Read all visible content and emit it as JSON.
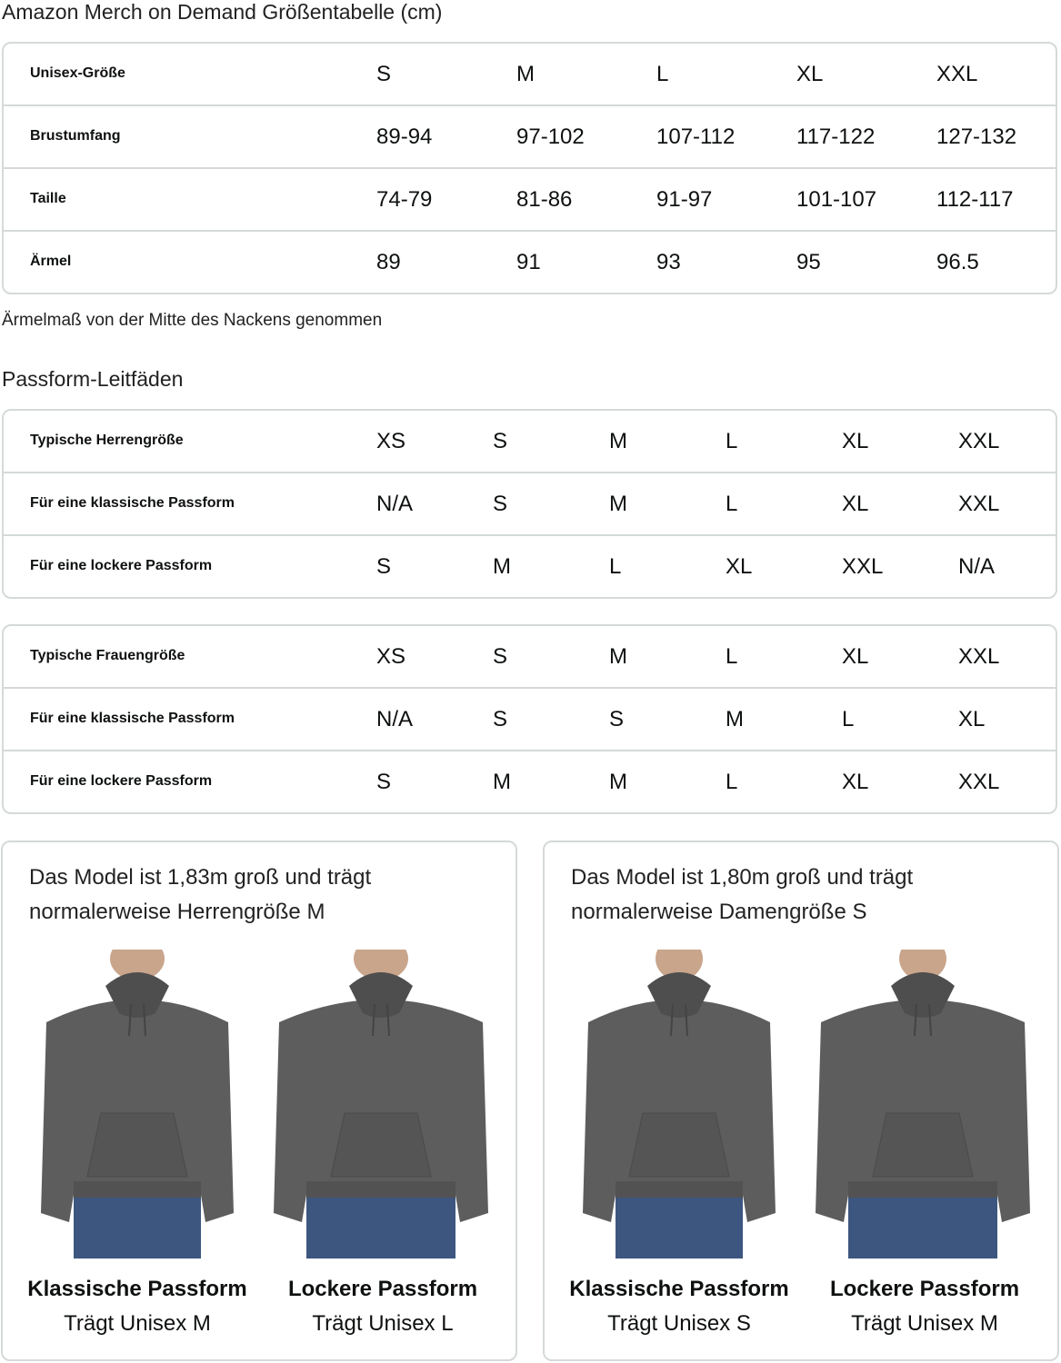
{
  "title": "Amazon Merch on Demand Größentabelle (cm)",
  "unisex_table": {
    "rows": [
      {
        "label": "Unisex-Größe",
        "values": [
          "S",
          "M",
          "L",
          "XL",
          "XXL"
        ]
      },
      {
        "label": "Brustumfang",
        "values": [
          "89-94",
          "97-102",
          "107-112",
          "117-122",
          "127-132"
        ]
      },
      {
        "label": "Taille",
        "values": [
          "74-79",
          "81-86",
          "91-97",
          "101-107",
          "112-117"
        ]
      },
      {
        "label": "Ärmel",
        "values": [
          "89",
          "91",
          "93",
          "95",
          "96.5"
        ]
      }
    ]
  },
  "note": "Ärmelmaß von der Mitte des Nackens genommen",
  "fit_guides_title": "Passform-Leitfäden",
  "men_table": {
    "rows": [
      {
        "label": "Typische Herrengröße",
        "values": [
          "XS",
          "S",
          "M",
          "L",
          "XL",
          "XXL"
        ]
      },
      {
        "label": "Für eine klassische Passform",
        "values": [
          "N/A",
          "S",
          "M",
          "L",
          "XL",
          "XXL"
        ]
      },
      {
        "label": "Für eine lockere Passform",
        "values": [
          "S",
          "M",
          "L",
          "XL",
          "XXL",
          "N/A"
        ]
      }
    ]
  },
  "women_table": {
    "rows": [
      {
        "label": "Typische Frauengröße",
        "values": [
          "XS",
          "S",
          "M",
          "L",
          "XL",
          "XXL"
        ]
      },
      {
        "label": "Für eine klassische Passform",
        "values": [
          "N/A",
          "S",
          "S",
          "M",
          "L",
          "XL"
        ]
      },
      {
        "label": "Für eine lockere Passform",
        "values": [
          "S",
          "M",
          "M",
          "L",
          "XL",
          "XXL"
        ]
      }
    ]
  },
  "cards": [
    {
      "caption_line1": "Das Model ist 1,83m groß und trägt",
      "caption_line2": "normalerweise Herrengröße M",
      "figures": [
        {
          "fit": "Klassische Passform",
          "size": "Trägt Unisex M"
        },
        {
          "fit": "Lockere Passform",
          "size": "Trägt Unisex L"
        }
      ]
    },
    {
      "caption_line1": "Das Model ist 1,80m groß und trägt",
      "caption_line2": "normalerweise Damengröße S",
      "figures": [
        {
          "fit": "Klassische Passform",
          "size": "Trägt Unisex S"
        },
        {
          "fit": "Lockere Passform",
          "size": "Trägt Unisex M"
        }
      ]
    }
  ],
  "colors": {
    "hoodie": "#5d5d5d",
    "jeans": "#3d5680",
    "border": "#d5d9d9"
  }
}
